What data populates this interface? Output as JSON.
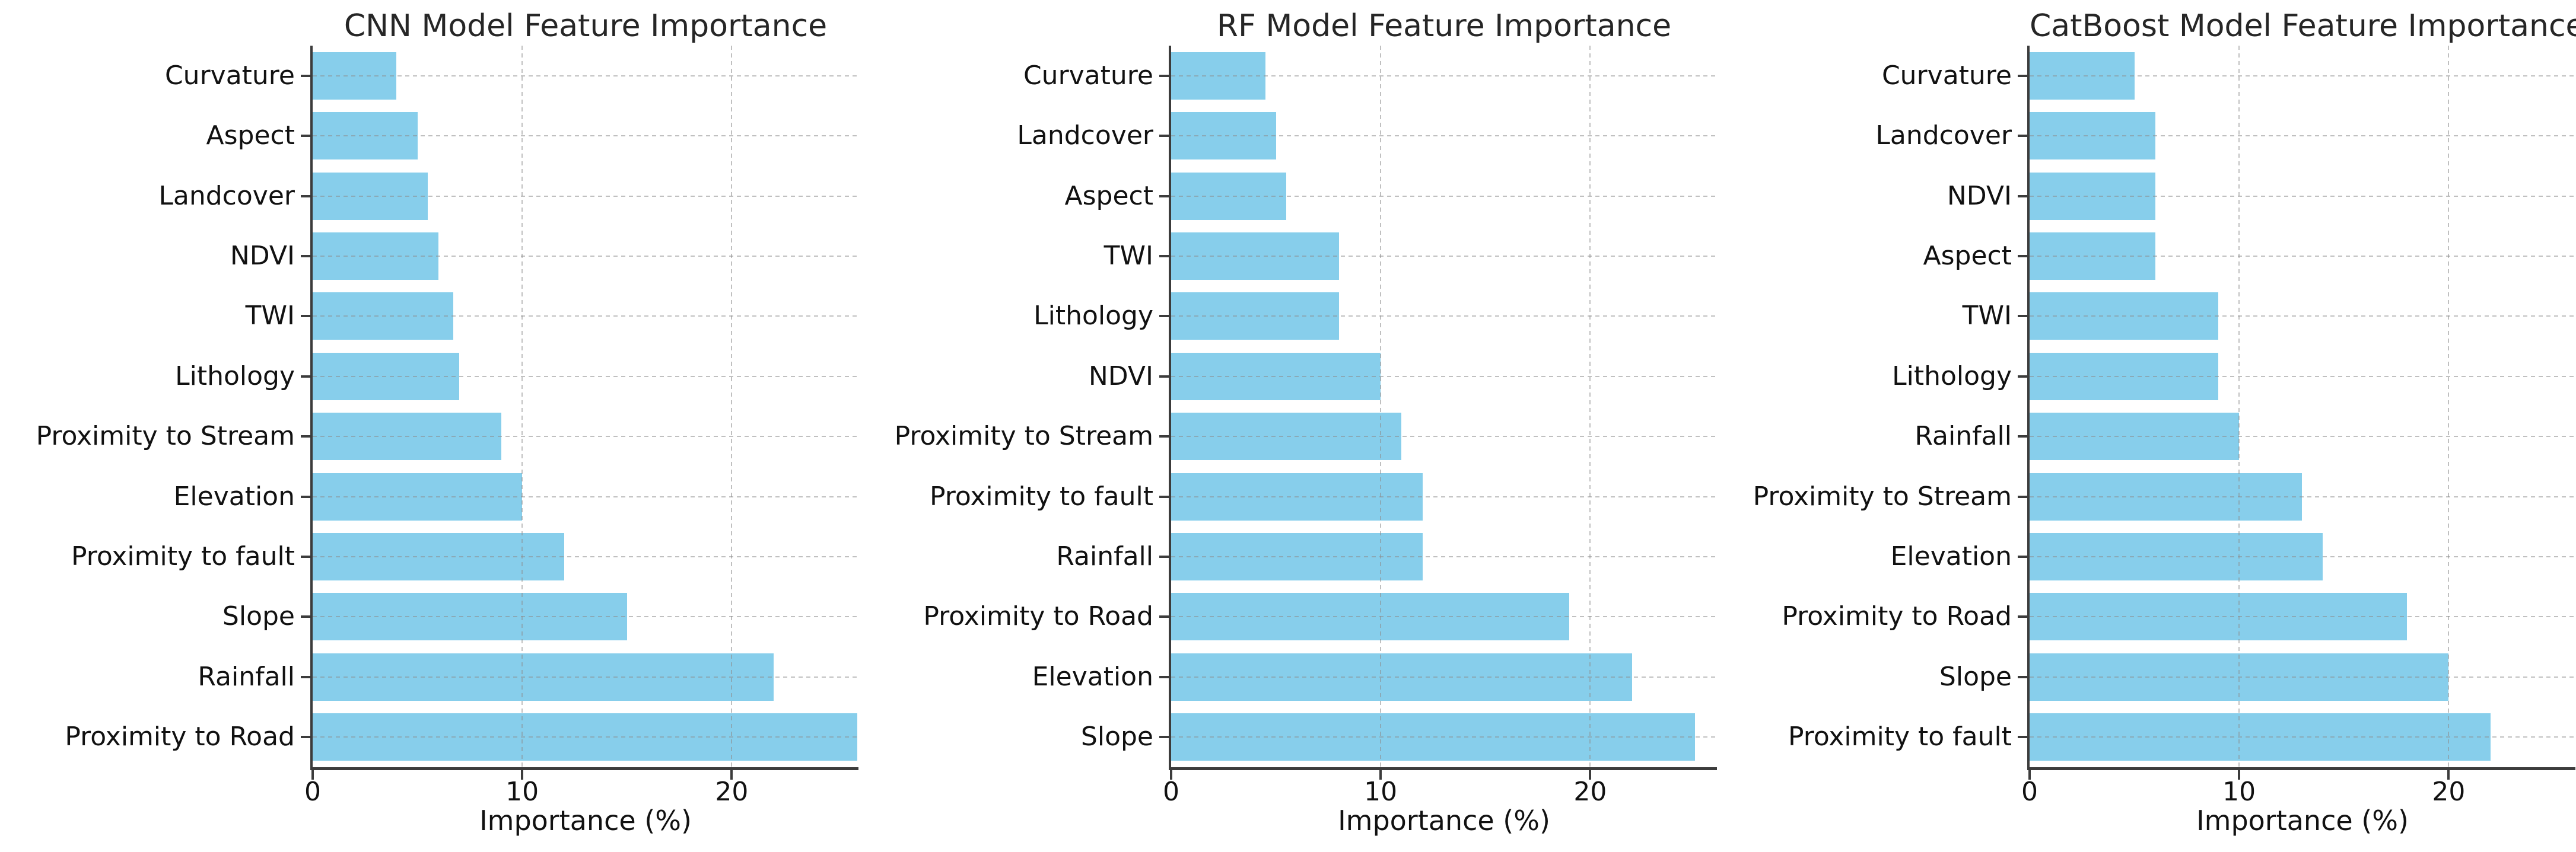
{
  "figure": {
    "background_color": "#ffffff",
    "bar_color": "#87CEEB",
    "axis_color": "#3c3c3c",
    "grid_color": "#8c8c8c",
    "text_color": "#111111",
    "title_color": "#262626",
    "grid_style": "dashed",
    "legend": "none"
  },
  "chart_data": [
    {
      "type": "bar",
      "orientation": "horizontal",
      "title": "CNN Model Feature Importance",
      "xlabel": "Importance (%)",
      "ylabel": "",
      "xlim": [
        0,
        26.05
      ],
      "x_ticks": [
        0,
        10,
        20
      ],
      "grid": true,
      "category_order": "top_to_bottom",
      "categories": [
        "Curvature",
        "Aspect",
        "Landcover",
        "NDVI",
        "TWI",
        "Lithology",
        "Proximity to Stream",
        "Elevation",
        "Proximity to fault",
        "Slope",
        "Rainfall",
        "Proximity to Road"
      ],
      "values": [
        4,
        5,
        5.5,
        6,
        6.7,
        7,
        9,
        10,
        12,
        15,
        22,
        26
      ]
    },
    {
      "type": "bar",
      "orientation": "horizontal",
      "title": "RF Model Feature Importance",
      "xlabel": "Importance (%)",
      "ylabel": "",
      "xlim": [
        0,
        26.05
      ],
      "x_ticks": [
        0,
        10,
        20
      ],
      "grid": true,
      "category_order": "top_to_bottom",
      "categories": [
        "Curvature",
        "Landcover",
        "Aspect",
        "TWI",
        "Lithology",
        "NDVI",
        "Proximity to Stream",
        "Proximity to fault",
        "Rainfall",
        "Proximity to Road",
        "Elevation",
        "Slope"
      ],
      "values": [
        4.5,
        5,
        5.5,
        8,
        8,
        10,
        11,
        12,
        12,
        19,
        22,
        25
      ]
    },
    {
      "type": "bar",
      "orientation": "horizontal",
      "title": "CatBoost Model Feature Importance",
      "xlabel": "Importance (%)",
      "ylabel": "",
      "xlim": [
        0,
        26.05
      ],
      "x_ticks": [
        0,
        10,
        20
      ],
      "grid": true,
      "category_order": "top_to_bottom",
      "categories": [
        "Curvature",
        "Landcover",
        "NDVI",
        "Aspect",
        "TWI",
        "Lithology",
        "Rainfall",
        "Proximity to Stream",
        "Elevation",
        "Proximity to Road",
        "Slope",
        "Proximity to fault"
      ],
      "values": [
        5,
        6,
        6,
        6,
        9,
        9,
        10,
        13,
        14,
        18,
        20,
        22
      ]
    }
  ]
}
